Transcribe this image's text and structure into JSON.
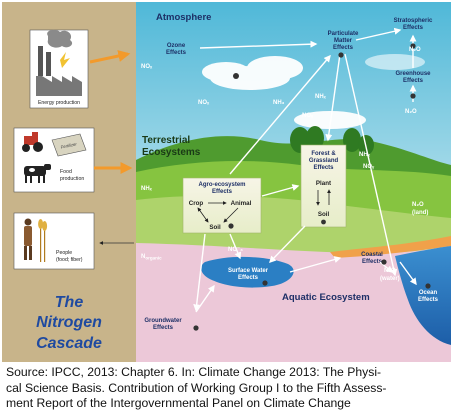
{
  "sidebar": {
    "energy": "Energy production",
    "food_1": "Food",
    "food_2": "production",
    "fertilizer": "Fertilizer",
    "people_1": "People",
    "people_2": "(food; fiber)",
    "title_1": "The",
    "title_2": "Nitrogen",
    "title_3": "Cascade"
  },
  "regions": {
    "atmosphere": "Atmosphere",
    "terrestrial_1": "Terrestrial",
    "terrestrial_2": "Ecosystems",
    "aquatic": "Aquatic Ecosystem"
  },
  "effects": {
    "ozone_1": "Ozone",
    "ozone_2": "Effects",
    "pm_1": "Particulate",
    "pm_2": "Matter",
    "pm_3": "Effects",
    "strat_1": "Stratospheric",
    "strat_2": "Effects",
    "greenhouse_1": "Greenhouse",
    "greenhouse_2": "Effects",
    "agro_1": "Agro-ecosystem",
    "agro_2": "Effects",
    "crop": "Crop",
    "animal": "Animal",
    "soil": "Soil",
    "forest_1": "Forest &",
    "forest_2": "Grassland",
    "forest_3": "Effects",
    "plant": "Plant",
    "forest_soil": "Soil",
    "surface_1": "Surface Water",
    "surface_2": "Effects",
    "coastal_1": "Coastal",
    "coastal_2": "Effects",
    "ocean_1": "Ocean",
    "ocean_2": "Effects",
    "ground_1": "Groundwater",
    "ground_2": "Effects",
    "n2o_water": "(water)",
    "n2o_land": "(land)"
  },
  "species": {
    "nox": "NOₓ",
    "nhx": "NHₓ",
    "nh3": "NH₃",
    "noy": "NOᵧ",
    "n2o": "N₂O",
    "norganic": "N",
    "norganic_sub": "organic",
    "no3": "NO⁻₃"
  },
  "caption": {
    "line_1": "Source: IPCC, 2013: Chapter 6. In: Climate Change 2013: The Physi-",
    "line_2": "cal Science Basis. Contribution of Working Group I to the Fifth Assess-",
    "line_3": "ment Report of the Intergovernmental Panel on Climate Change"
  },
  "colors": {
    "sidebar_tan": "#c8b48a",
    "sky_top": "#5ec2dd",
    "sky_bottom": "#bfe4ee",
    "grass": "#86c440",
    "hill": "#4f9b2f",
    "field": "#aed36b",
    "aquatic_pink": "#ecc8d8",
    "water": "#2b7fc4",
    "orange_arrow": "#f39a2b",
    "title_blue": "#1f4aa0"
  }
}
